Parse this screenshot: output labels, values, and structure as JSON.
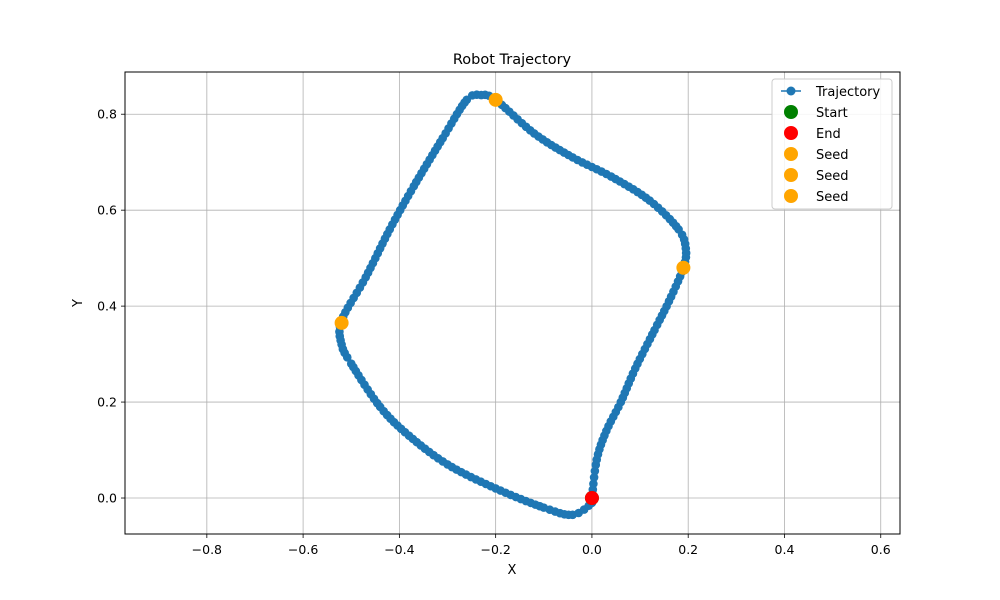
{
  "chart_data": {
    "type": "line",
    "title": "Robot Trajectory",
    "xlabel": "X",
    "ylabel": "Y",
    "xlim": [
      -0.97,
      0.64
    ],
    "ylim": [
      -0.075,
      0.888
    ],
    "xticks": [
      -0.8,
      -0.6,
      -0.4,
      -0.2,
      0.0,
      0.2,
      0.4,
      0.6
    ],
    "xtick_labels": [
      "−0.8",
      "−0.6",
      "−0.4",
      "−0.2",
      "0.0",
      "0.2",
      "0.4",
      "0.6"
    ],
    "yticks": [
      0.0,
      0.2,
      0.4,
      0.6,
      0.8
    ],
    "ytick_labels": [
      "0.0",
      "0.2",
      "0.4",
      "0.6",
      "0.8"
    ],
    "grid": true,
    "legend_position": "top-right",
    "colors": {
      "trajectory": "#1f77b4",
      "start": "#008000",
      "end": "#ff0000",
      "seed": "#ffa500",
      "heading": "#0000ff",
      "grid": "#b0b0b0"
    },
    "trajectory_path": [
      [
        0.0,
        0.0
      ],
      [
        0.01,
        0.08
      ],
      [
        0.03,
        0.14
      ],
      [
        0.06,
        0.2
      ],
      [
        0.09,
        0.27
      ],
      [
        0.13,
        0.35
      ],
      [
        0.16,
        0.41
      ],
      [
        0.19,
        0.48
      ],
      [
        0.195,
        0.52
      ],
      [
        0.18,
        0.56
      ],
      [
        0.12,
        0.62
      ],
      [
        0.04,
        0.67
      ],
      [
        -0.04,
        0.71
      ],
      [
        -0.12,
        0.76
      ],
      [
        -0.2,
        0.83
      ],
      [
        -0.23,
        0.84
      ],
      [
        -0.26,
        0.83
      ],
      [
        -0.31,
        0.75
      ],
      [
        -0.37,
        0.65
      ],
      [
        -0.42,
        0.56
      ],
      [
        -0.47,
        0.46
      ],
      [
        -0.52,
        0.37
      ],
      [
        -0.52,
        0.32
      ],
      [
        -0.5,
        0.28
      ],
      [
        -0.44,
        0.19
      ],
      [
        -0.38,
        0.13
      ],
      [
        -0.3,
        0.07
      ],
      [
        -0.2,
        0.02
      ],
      [
        -0.1,
        -0.02
      ],
      [
        -0.04,
        -0.035
      ],
      [
        0.0,
        -0.01
      ],
      [
        0.0,
        0.0
      ]
    ],
    "start": [
      0.0,
      0.0
    ],
    "end": [
      0.0,
      0.0
    ],
    "seeds": [
      [
        -0.2,
        0.83
      ],
      [
        0.19,
        0.48
      ],
      [
        -0.52,
        0.365
      ]
    ],
    "legend": [
      "Trajectory",
      "Start",
      "End",
      "Seed",
      "Seed",
      "Seed"
    ]
  }
}
